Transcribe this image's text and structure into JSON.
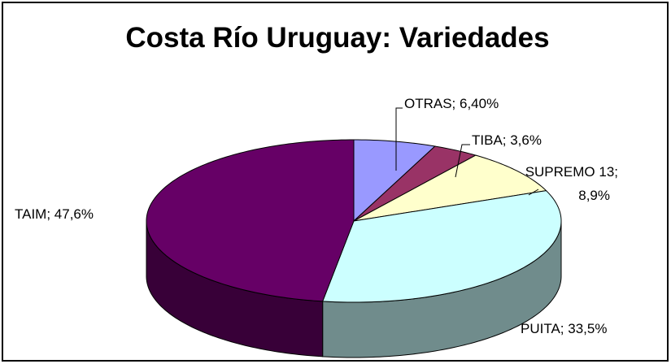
{
  "chart_data": {
    "type": "pie3d",
    "title": "Costa Río Uruguay: Variedades",
    "categories": [
      "OTRAS",
      "TIBA",
      "SUPREMO 13",
      "PUITA",
      "TAIM"
    ],
    "values": [
      6.4,
      3.6,
      8.9,
      33.5,
      47.6
    ],
    "value_labels": [
      "OTRAS; 6,40%",
      "TIBA; 3,6%",
      "SUPREMO 13; 8,9%",
      "PUITA; 33,5%",
      "TAIM; 47,6%"
    ],
    "colors": [
      "#9999ff",
      "#993366",
      "#ffffcc",
      "#ccffff",
      "#660066"
    ]
  }
}
